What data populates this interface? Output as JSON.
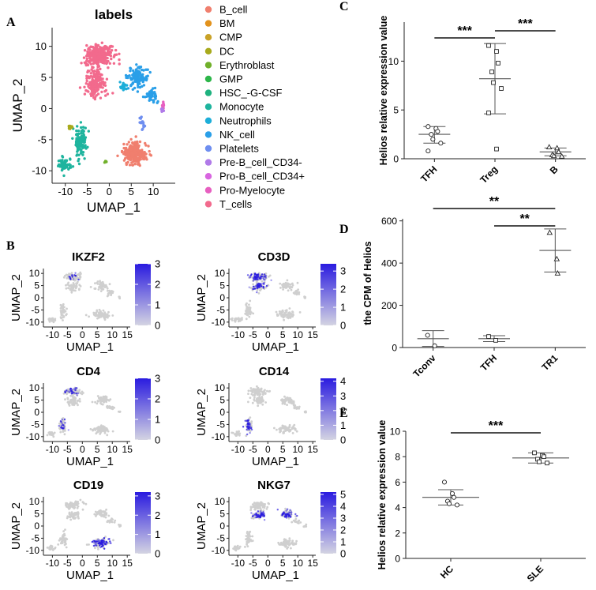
{
  "panels": {
    "a": "A",
    "b": "B",
    "c": "C",
    "d": "D",
    "e": "E"
  },
  "colors": {
    "feature_high": "#2a1be0",
    "feature_low": "#d4d4e2",
    "grey": "#cfcfcf",
    "axis": "#222222"
  },
  "chart_data": [
    {
      "id": "panel_a",
      "type": "scatter",
      "title": "labels",
      "xlabel": "UMAP_1",
      "ylabel": "UMAP_2",
      "xlim": [
        -13,
        15
      ],
      "ylim": [
        -12,
        13
      ],
      "xticks": [
        "-10",
        "-5",
        "0",
        "5",
        "10"
      ],
      "xtick_values": [
        -10,
        -5,
        0,
        5,
        10
      ],
      "yticks": [
        "10",
        "5",
        "0",
        "-5",
        "-10"
      ],
      "ytick_values": [
        10,
        5,
        0,
        -5,
        -10
      ],
      "legend": [
        {
          "label": "B_cell",
          "color": "#f07f6e"
        },
        {
          "label": "BM",
          "color": "#e2921c"
        },
        {
          "label": "CMP",
          "color": "#c9a227"
        },
        {
          "label": "DC",
          "color": "#a8aa1c"
        },
        {
          "label": "Erythroblast",
          "color": "#70b02a"
        },
        {
          "label": "GMP",
          "color": "#2db64a"
        },
        {
          "label": "HSC_-G-CSF",
          "color": "#1fb27f"
        },
        {
          "label": "Monocyte",
          "color": "#1eb49e"
        },
        {
          "label": "Neutrophils",
          "color": "#1daed9"
        },
        {
          "label": "NK_cell",
          "color": "#2a9fe8"
        },
        {
          "label": "Platelets",
          "color": "#6e8ef0"
        },
        {
          "label": "Pre-B_cell_CD34-",
          "color": "#b07ae8"
        },
        {
          "label": "Pro-B_cell_CD34+",
          "color": "#d865e0"
        },
        {
          "label": "Pro-Myelocyte",
          "color": "#e75fc0"
        },
        {
          "label": "T_cells",
          "color": "#f26a8d"
        }
      ],
      "clusters": [
        {
          "label": "T_cells",
          "cx": -2.5,
          "cy": 8.5,
          "sx": 2.8,
          "sy": 1.6,
          "n": 260
        },
        {
          "label": "T_cells",
          "cx": -3.0,
          "cy": 4.0,
          "sx": 2.2,
          "sy": 2.0,
          "n": 160
        },
        {
          "label": "NK_cell",
          "cx": 6.5,
          "cy": 5.0,
          "sx": 2.0,
          "sy": 1.6,
          "n": 120
        },
        {
          "label": "NK_cell",
          "cx": 9.5,
          "cy": 2.0,
          "sx": 1.4,
          "sy": 1.0,
          "n": 50
        },
        {
          "label": "Platelets",
          "cx": 7.5,
          "cy": -2.5,
          "sx": 1.0,
          "sy": 1.0,
          "n": 18
        },
        {
          "label": "B_cell",
          "cx": 6.0,
          "cy": -7.2,
          "sx": 2.6,
          "sy": 1.6,
          "n": 230
        },
        {
          "label": "Monocyte",
          "cx": -6.5,
          "cy": -5.5,
          "sx": 1.2,
          "sy": 2.5,
          "n": 110
        },
        {
          "label": "Monocyte",
          "cx": -10.2,
          "cy": -9.0,
          "sx": 1.3,
          "sy": 1.0,
          "n": 60
        },
        {
          "label": "Neutrophils",
          "cx": 3.2,
          "cy": 3.5,
          "sx": 0.6,
          "sy": 0.8,
          "n": 25
        },
        {
          "label": "Pro-Myelocyte",
          "cx": 12.3,
          "cy": 0.5,
          "sx": 0.3,
          "sy": 0.5,
          "n": 10
        },
        {
          "label": "Pre-B_cell_CD34-",
          "cx": 12.0,
          "cy": 0.0,
          "sx": 0.3,
          "sy": 0.4,
          "n": 8
        },
        {
          "label": "DC",
          "cx": -9.0,
          "cy": -3.0,
          "sx": 0.6,
          "sy": 0.6,
          "n": 10
        },
        {
          "label": "Erythroblast",
          "cx": -1.0,
          "cy": -8.5,
          "sx": 0.3,
          "sy": 0.3,
          "n": 4
        }
      ]
    },
    {
      "id": "panel_b",
      "type": "scatter",
      "subtype": "feature_plot",
      "xlabel": "UMAP_1",
      "ylabel": "UMAP_2",
      "xticks": [
        "-10",
        "-5",
        "0",
        "5",
        "10",
        "15"
      ],
      "xtick_values": [
        -10,
        -5,
        0,
        5,
        10,
        15
      ],
      "yticks": [
        "10",
        "5",
        "0",
        "-5",
        "-10"
      ],
      "ytick_values": [
        10,
        5,
        0,
        -5,
        -10
      ],
      "features": [
        {
          "gene": "IKZF2",
          "scale_max": 3,
          "colorbar_ticks": [
            "3",
            "2",
            "1",
            "0"
          ],
          "colorbar_values": [
            3,
            2,
            1,
            0
          ],
          "high_regions": [
            "tcell_top"
          ],
          "density": 0.15
        },
        {
          "gene": "CD3D",
          "scale_max": 3.4,
          "colorbar_ticks": [
            "3",
            "2",
            "1",
            "0"
          ],
          "colorbar_values": [
            3,
            2,
            1,
            0
          ],
          "high_regions": [
            "tcell_top",
            "tcell_mid"
          ],
          "density": 0.85
        },
        {
          "gene": "CD4",
          "scale_max": 3,
          "colorbar_ticks": [
            "3",
            "2",
            "1",
            "0"
          ],
          "colorbar_values": [
            3,
            2,
            1,
            0
          ],
          "high_regions": [
            "tcell_top",
            "mono"
          ],
          "density": 0.45
        },
        {
          "gene": "CD14",
          "scale_max": 4.2,
          "colorbar_ticks": [
            "4",
            "3",
            "2",
            "1",
            "0"
          ],
          "colorbar_values": [
            4,
            3,
            2,
            1,
            0
          ],
          "high_regions": [
            "mono"
          ],
          "density": 0.9
        },
        {
          "gene": "CD19",
          "scale_max": 3.2,
          "colorbar_ticks": [
            "3",
            "2",
            "1",
            "0"
          ],
          "colorbar_values": [
            3,
            2,
            1,
            0
          ],
          "high_regions": [
            "bcell"
          ],
          "density": 0.9
        },
        {
          "gene": "NKG7",
          "scale_max": 5.2,
          "colorbar_ticks": [
            "5",
            "4",
            "3",
            "2",
            "1",
            "0"
          ],
          "colorbar_values": [
            5,
            4,
            3,
            2,
            1,
            0
          ],
          "high_regions": [
            "nk",
            "tcell_mid"
          ],
          "density": 0.9
        }
      ]
    },
    {
      "id": "panel_c",
      "type": "scatter",
      "subtype": "dot_plot_mean_sd",
      "ylabel": "Helios relative expression value",
      "ylim": [
        0,
        14
      ],
      "yticks": [
        "0",
        "5",
        "10"
      ],
      "ytick_values": [
        0,
        5,
        10
      ],
      "categories": [
        "TFH",
        "Treg",
        "B"
      ],
      "series": [
        {
          "name": "TFH",
          "marker": "circle",
          "mean": 2.5,
          "sd_low": 1.6,
          "sd_high": 3.3,
          "values": [
            3.3,
            3.1,
            2.8,
            2.5,
            2.0,
            1.6,
            0.8
          ]
        },
        {
          "name": "Treg",
          "marker": "square",
          "mean": 8.2,
          "sd_low": 4.6,
          "sd_high": 11.8,
          "values": [
            11.6,
            11.0,
            9.8,
            8.9,
            7.8,
            7.2,
            4.7,
            1.0
          ]
        },
        {
          "name": "B",
          "marker": "triangle",
          "mean": 0.7,
          "sd_low": 0.3,
          "sd_high": 1.1,
          "values": [
            1.2,
            1.1,
            0.7,
            0.4,
            0.3,
            0.25
          ]
        }
      ],
      "significance": [
        {
          "from": "TFH",
          "to": "Treg",
          "label": "***"
        },
        {
          "from": "Treg",
          "to": "B",
          "label": "***"
        }
      ]
    },
    {
      "id": "panel_d",
      "type": "scatter",
      "subtype": "dot_plot_mean_sd",
      "ylabel": "the CPM of Helios",
      "ylim": [
        0,
        610
      ],
      "yticks": [
        "0",
        "200",
        "400",
        "600"
      ],
      "ytick_values": [
        0,
        200,
        400,
        600
      ],
      "categories": [
        "Tconv",
        "TFH",
        "TR1"
      ],
      "series": [
        {
          "name": "Tconv",
          "marker": "circle",
          "mean": 42,
          "sd_low": 5,
          "sd_high": 80,
          "values": [
            58,
            8
          ]
        },
        {
          "name": "TFH",
          "marker": "square",
          "mean": 42,
          "sd_low": 28,
          "sd_high": 56,
          "values": [
            52,
            34
          ]
        },
        {
          "name": "TR1",
          "marker": "triangle",
          "mean": 460,
          "sd_low": 358,
          "sd_high": 562,
          "values": [
            545,
            420,
            352
          ]
        }
      ],
      "significance": [
        {
          "from": "Tconv",
          "to": "TR1",
          "label": "**"
        },
        {
          "from": "TFH",
          "to": "TR1",
          "label": "**"
        }
      ]
    },
    {
      "id": "panel_e",
      "type": "scatter",
      "subtype": "dot_plot_mean_sd",
      "ylabel": "Helios relative expression value",
      "ylim": [
        0,
        10
      ],
      "yticks": [
        "0",
        "2",
        "4",
        "6",
        "8",
        "10"
      ],
      "ytick_values": [
        0,
        2,
        4,
        6,
        8,
        10
      ],
      "categories": [
        "HC",
        "SLE"
      ],
      "series": [
        {
          "name": "HC",
          "marker": "circle",
          "mean": 4.8,
          "sd_low": 4.2,
          "sd_high": 5.4,
          "values": [
            6.0,
            5.1,
            4.8,
            4.5,
            4.3,
            4.2
          ]
        },
        {
          "name": "SLE",
          "marker": "square",
          "mean": 7.9,
          "sd_low": 7.5,
          "sd_high": 8.3,
          "values": [
            8.3,
            8.1,
            8.0,
            7.8,
            7.6,
            7.5
          ]
        }
      ],
      "significance": [
        {
          "from": "HC",
          "to": "SLE",
          "label": "***"
        }
      ]
    }
  ]
}
